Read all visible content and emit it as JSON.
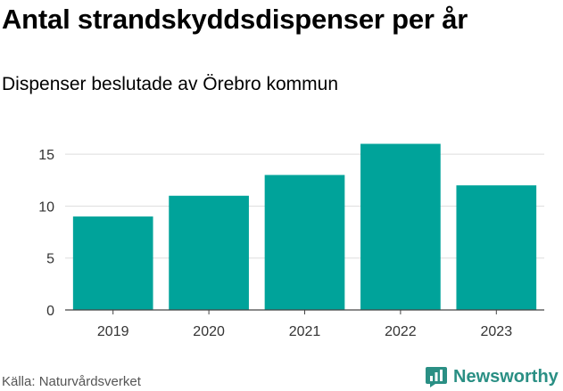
{
  "header": {
    "title": "Antal strandskyddsdispenser per år",
    "subtitle": "Dispenser beslutade av Örebro kommun"
  },
  "footer": {
    "source": "Källa: Naturvårdsverket",
    "brand": "Newsworthy"
  },
  "colors": {
    "bar": "#00a39a",
    "grid": "#dddddd",
    "axis": "#444444",
    "brand": "#2a8f84"
  },
  "icons": {
    "brand_logo": "newsworthy-logo-icon"
  },
  "chart_data": {
    "type": "bar",
    "title": "Antal strandskyddsdispenser per år",
    "subtitle": "Dispenser beslutade av Örebro kommun",
    "xlabel": "",
    "ylabel": "",
    "categories": [
      "2019",
      "2020",
      "2021",
      "2022",
      "2023"
    ],
    "series": [
      {
        "name": "Dispenser",
        "values": [
          9,
          11,
          13,
          16,
          12
        ]
      }
    ],
    "ylim": [
      0,
      17.5
    ],
    "yticks": [
      0,
      5,
      10,
      15
    ],
    "grid": true,
    "legend": "none"
  }
}
